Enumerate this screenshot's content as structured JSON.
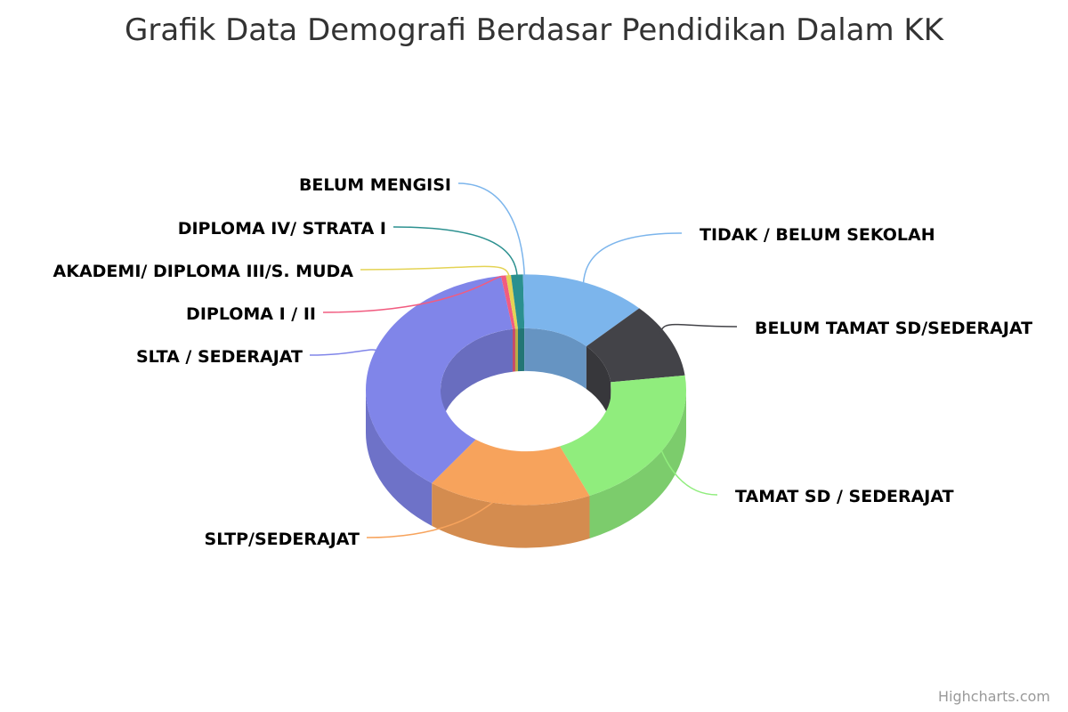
{
  "chart_data": {
    "type": "pie",
    "variant": "3d-donut",
    "title": "Grafik Data Demografi Berdasar Pendidikan Dalam KK",
    "series": [
      {
        "categories": [
          "TIDAK / BELUM SEKOLAH",
          "BELUM TAMAT SD/SEDERAJAT",
          "TAMAT SD / SEDERAJAT",
          "SLTP/SEDERAJAT",
          "SLTA / SEDERAJAT",
          "DIPLOMA I / II",
          "AKADEMI/ DIPLOMA III/S. MUDA",
          "DIPLOMA IV/ STRATA I",
          "BELUM MENGISI"
        ],
        "values": [
          12.5,
          10.5,
          20.5,
          16.5,
          37.5,
          0.5,
          0.5,
          1.2,
          0.3
        ],
        "colors": [
          "#7cb5ec",
          "#434348",
          "#90ed7d",
          "#f7a35c",
          "#8085e9",
          "#f15c80",
          "#e4d354",
          "#2b908f",
          "#7cb5ec"
        ]
      }
    ],
    "legend": "none",
    "data_labels": "outside-with-connectors"
  },
  "credits": "Highcharts.com"
}
